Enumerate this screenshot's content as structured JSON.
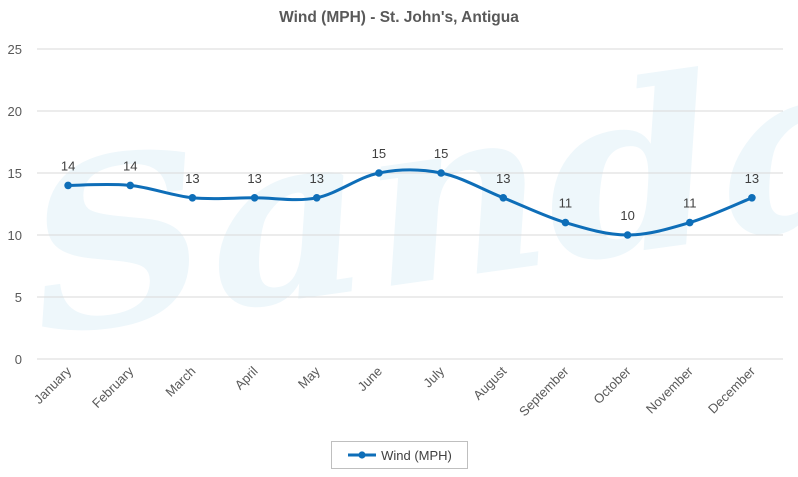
{
  "chart_data": {
    "type": "line",
    "title": "Wind (MPH) - St. John's, Antigua",
    "categories": [
      "January",
      "February",
      "March",
      "April",
      "May",
      "June",
      "July",
      "August",
      "September",
      "October",
      "November",
      "December"
    ],
    "series": [
      {
        "name": "Wind (MPH)",
        "values": [
          14,
          14,
          13,
          13,
          13,
          15,
          15,
          13,
          11,
          10,
          11,
          13
        ]
      }
    ],
    "ylim": [
      0,
      25
    ],
    "yticks": [
      "0",
      "5",
      "10",
      "15",
      "20",
      "25"
    ],
    "xlabel": "",
    "ylabel": "",
    "grid": true,
    "smooth": true,
    "data_labels": true,
    "legend": "bottom",
    "colors": {
      "series": "#0e6eb8",
      "grid": "#d9d9d9",
      "text": "#595959",
      "watermark": "#eef7fb"
    },
    "watermark": "Sandals"
  }
}
